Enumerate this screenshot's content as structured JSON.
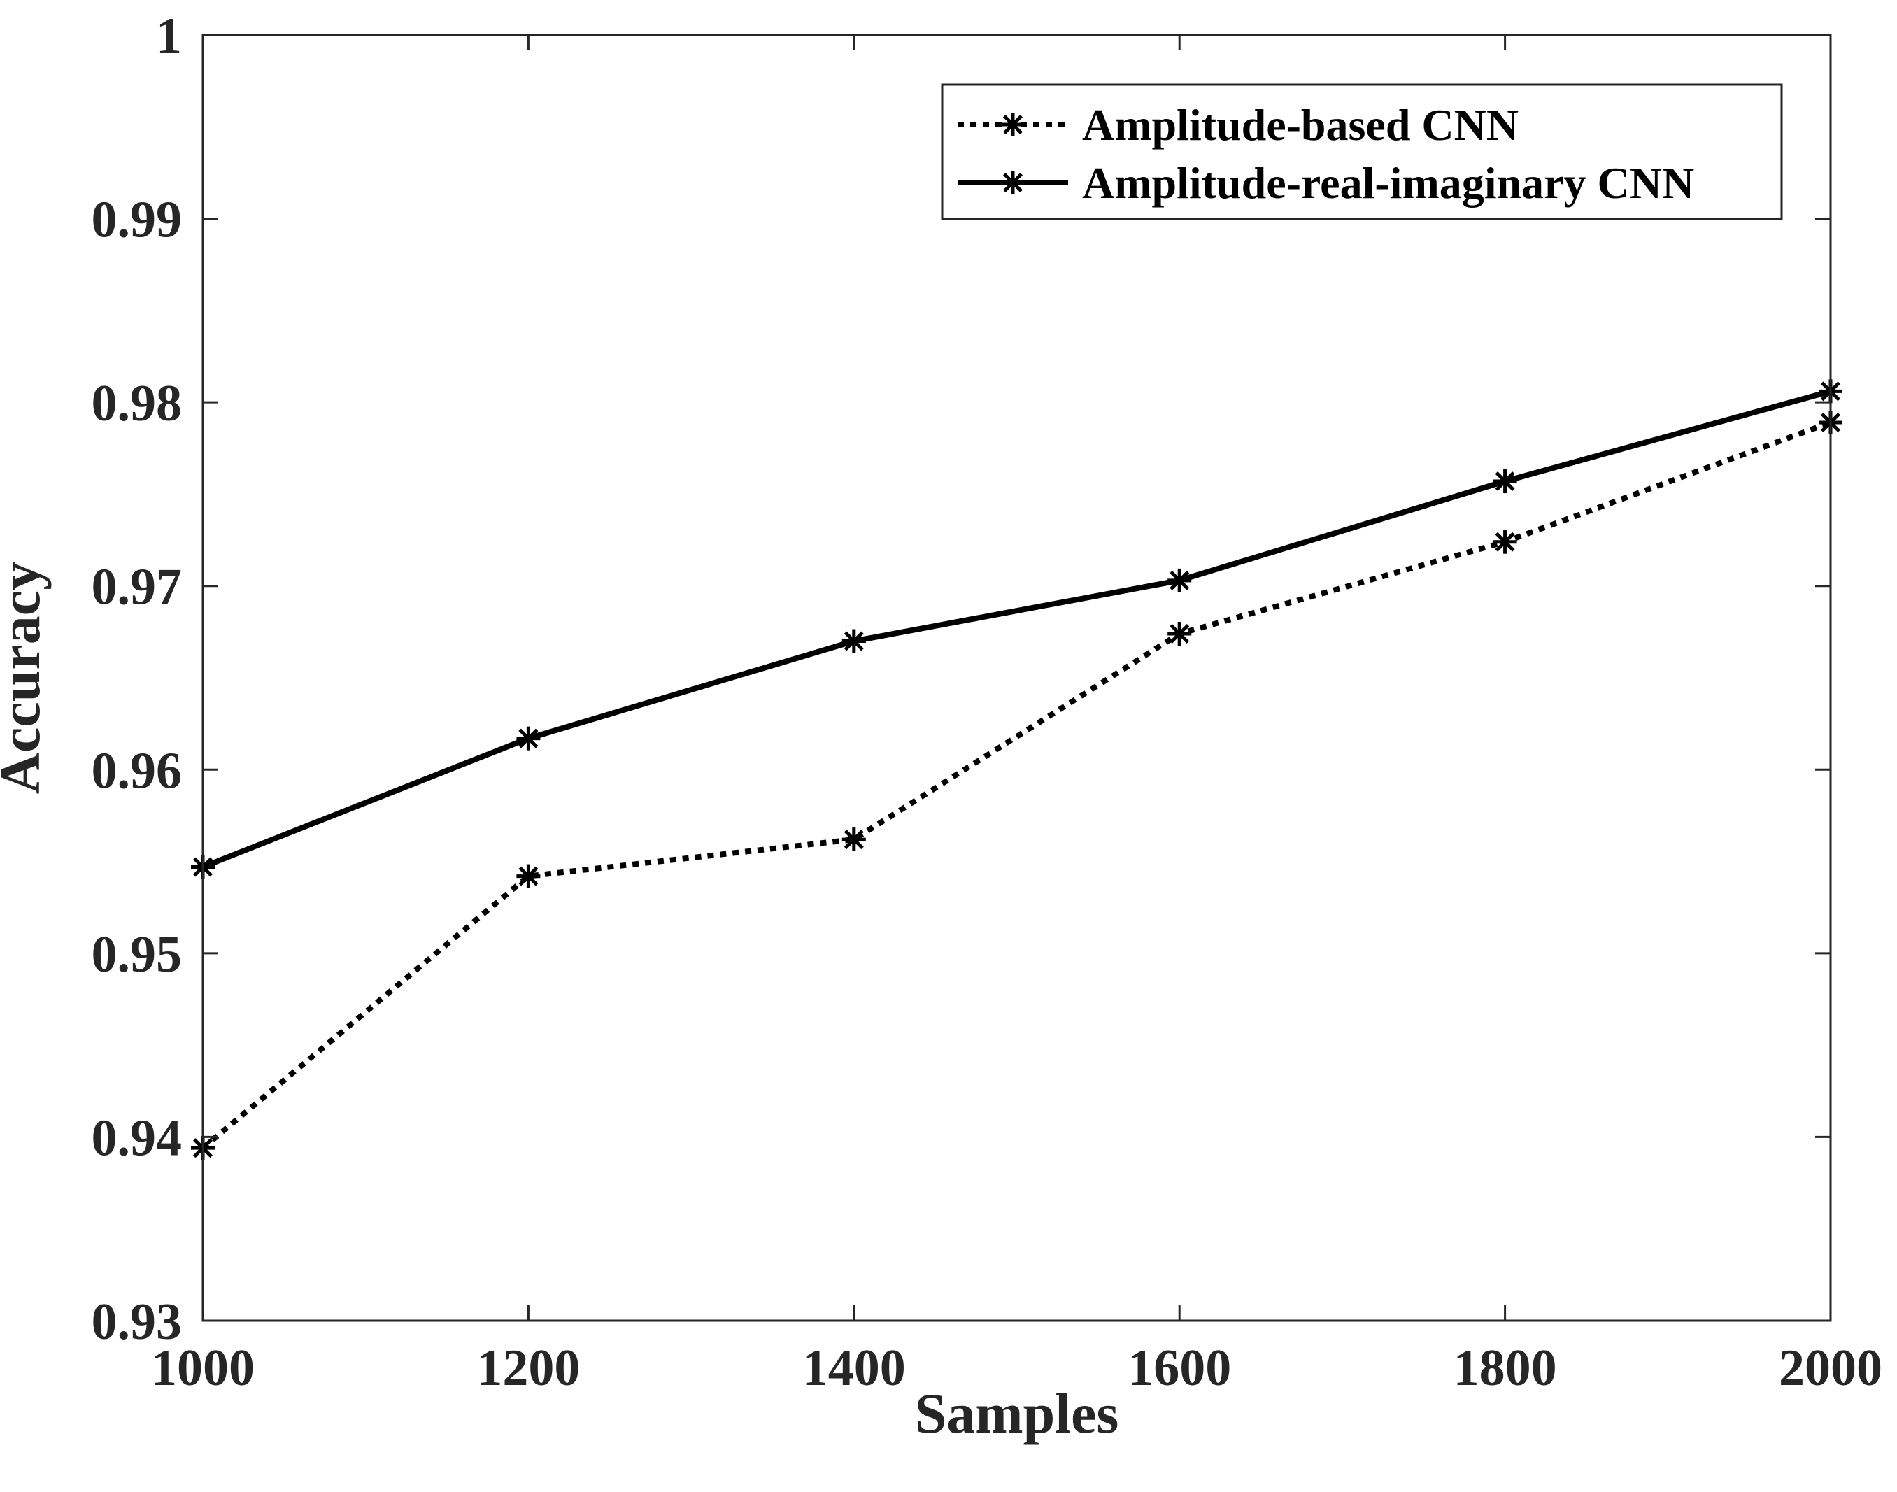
{
  "chart_data": {
    "type": "line",
    "title": "",
    "xlabel": "Samples",
    "ylabel": "Accuracy",
    "x": [
      1000,
      1200,
      1400,
      1600,
      1800,
      2000
    ],
    "xlim": [
      1000,
      2000
    ],
    "ylim": [
      0.93,
      1
    ],
    "xticks": [
      1000,
      1200,
      1400,
      1600,
      1800,
      2000
    ],
    "xtick_labels": [
      "1000",
      "1200",
      "1400",
      "1600",
      "1800",
      "2000"
    ],
    "yticks": [
      0.93,
      0.94,
      0.95,
      0.96,
      0.97,
      0.98,
      0.99,
      1
    ],
    "ytick_labels": [
      "0.93",
      "0.94",
      "0.95",
      "0.96",
      "0.97",
      "0.98",
      "0.99",
      "1"
    ],
    "grid": false,
    "legend_position": "top-right",
    "series": [
      {
        "name": "Amplitude-based CNN",
        "line_style": "dotted",
        "marker": "asterisk",
        "color": "#000000",
        "values": [
          0.9394,
          0.9542,
          0.9562,
          0.9674,
          0.9724,
          0.9789
        ]
      },
      {
        "name": "Amplitude-real-imaginary CNN",
        "line_style": "solid",
        "marker": "asterisk",
        "color": "#000000",
        "values": [
          0.9547,
          0.9617,
          0.967,
          0.9703,
          0.9757,
          0.9806
        ]
      }
    ]
  }
}
